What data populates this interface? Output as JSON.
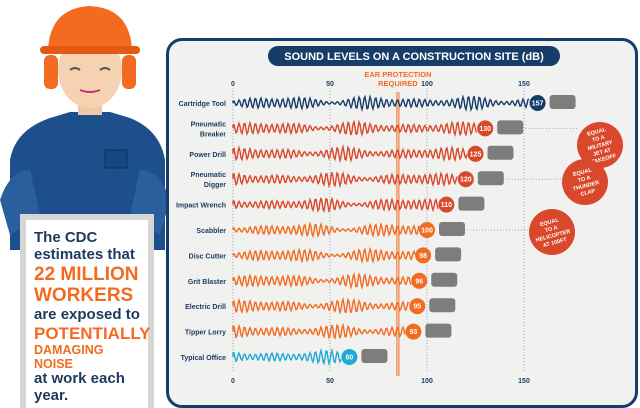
{
  "colors": {
    "navy": "#163d68",
    "orange": "#f26b21",
    "red": "#d9482b",
    "blue": "#22a9d6"
  },
  "info_box": {
    "line1": "The CDC",
    "line2": "estimates that",
    "line3": "22 MILLION",
    "line4": "WORKERS",
    "line5": "are exposed to",
    "line6": "POTENTIALLY",
    "line7": "DAMAGING NOISE",
    "line8": "at work each",
    "line9": "year."
  },
  "chart_data": {
    "type": "bar",
    "title": "SOUND LEVELS ON A CONSTRUCTION SITE (dB)",
    "xlabel": "",
    "ylabel": "",
    "xlim": [
      0,
      150
    ],
    "ticks": [
      "0",
      "50",
      "100",
      "150"
    ],
    "threshold": {
      "value": 85,
      "label_line1": "EAR PROTECTION",
      "label_line2": "REQUIRED"
    },
    "categories": [
      "Cartridge Tool",
      "Pneumatic Breaker",
      "Power Drill",
      "Pneumatic Digger",
      "Impact Wrench",
      "Scabbler",
      "Disc Cutter",
      "Grit Blaster",
      "Electric Drill",
      "Tipper Lorry",
      "Typical Office"
    ],
    "values": [
      157,
      130,
      125,
      120,
      110,
      100,
      98,
      96,
      95,
      93,
      60
    ],
    "series_colors": [
      "#163d68",
      "#d9482b",
      "#d9482b",
      "#d9482b",
      "#d9482b",
      "#f26b21",
      "#f26b21",
      "#f26b21",
      "#f26b21",
      "#f26b21",
      "#22a9d6"
    ],
    "annotations": [
      {
        "row": 1,
        "text": [
          "EQUAL",
          "TO A",
          "MILITARY",
          "JET AT",
          "TAKEOFF"
        ]
      },
      {
        "row": 3,
        "text": [
          "EQUAL",
          "TO A",
          "THUNDER",
          "CLAP"
        ]
      },
      {
        "row": 5,
        "text": [
          "EQUAL",
          "TO A",
          "HELICOPTER",
          "AT 100FT"
        ]
      }
    ]
  }
}
